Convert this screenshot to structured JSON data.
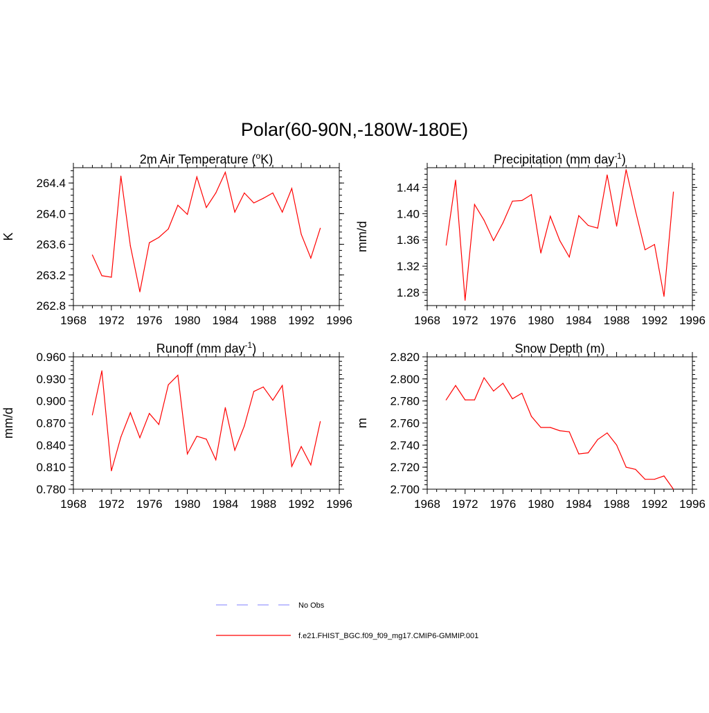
{
  "figure": {
    "main_title": "Polar(60-90N,-180W-180E)"
  },
  "legend": {
    "entries": [
      {
        "label": "No Obs",
        "color": "#9999ff",
        "style": "dashed"
      },
      {
        "label": "f.e21.FHIST_BGC.f09_f09_mg17.CMIP6-GMMIP.001",
        "color": "#ff0000",
        "style": "solid"
      }
    ]
  },
  "chart_data": [
    {
      "type": "line",
      "title": "2m Air Temperature (°K)",
      "title_parts": {
        "pre": "2m Air Temperature (",
        "sup": "o",
        "post": "K)"
      },
      "xlabel": "",
      "ylabel": "K",
      "xlim": [
        1968,
        1996
      ],
      "ylim": [
        262.8,
        264.6
      ],
      "xticks": [
        "1968",
        "1972",
        "1976",
        "1980",
        "1984",
        "1988",
        "1992",
        "1996"
      ],
      "yticks": [
        "262.8",
        "263.2",
        "263.6",
        "264.0",
        "264.4"
      ],
      "x": [
        1970,
        1971,
        1972,
        1973,
        1974,
        1975,
        1976,
        1977,
        1978,
        1979,
        1980,
        1981,
        1982,
        1983,
        1984,
        1985,
        1986,
        1987,
        1988,
        1989,
        1990,
        1991,
        1992,
        1993,
        1994
      ],
      "series": [
        {
          "name": "f.e21.FHIST_BGC.f09_f09_mg17.CMIP6-GMMIP.001",
          "color": "#ff0000",
          "values": [
            263.46,
            263.19,
            263.17,
            264.49,
            263.58,
            262.98,
            263.62,
            263.69,
            263.8,
            264.11,
            263.99,
            264.48,
            264.08,
            264.27,
            264.54,
            264.02,
            264.27,
            264.14,
            264.2,
            264.27,
            264.02,
            264.33,
            263.73,
            263.42,
            263.81
          ]
        }
      ]
    },
    {
      "type": "line",
      "title": "Precipitation (mm day-1)",
      "title_parts": {
        "pre": "Precipitation (mm day",
        "sup": "-1",
        "post": ")"
      },
      "xlabel": "",
      "ylabel": "mm/d",
      "xlim": [
        1968,
        1996
      ],
      "ylim": [
        1.26,
        1.47
      ],
      "xticks": [
        "1968",
        "1972",
        "1976",
        "1980",
        "1984",
        "1988",
        "1992",
        "1996"
      ],
      "yticks": [
        "1.28",
        "1.32",
        "1.36",
        "1.40",
        "1.44"
      ],
      "x": [
        1970,
        1971,
        1972,
        1973,
        1974,
        1975,
        1976,
        1977,
        1978,
        1979,
        1980,
        1981,
        1982,
        1983,
        1984,
        1985,
        1986,
        1987,
        1988,
        1989,
        1990,
        1991,
        1992,
        1993,
        1994
      ],
      "series": [
        {
          "name": "f.e21.FHIST_BGC.f09_f09_mg17.CMIP6-GMMIP.001",
          "color": "#ff0000",
          "values": [
            1.352,
            1.451,
            1.268,
            1.414,
            1.39,
            1.359,
            1.386,
            1.419,
            1.42,
            1.429,
            1.34,
            1.396,
            1.359,
            1.334,
            1.397,
            1.382,
            1.378,
            1.459,
            1.381,
            1.467,
            1.404,
            1.345,
            1.353,
            1.274,
            1.433
          ]
        }
      ]
    },
    {
      "type": "line",
      "title": "Runoff (mm day-1)",
      "title_parts": {
        "pre": "Runoff (mm day",
        "sup": "-1",
        "post": ")"
      },
      "xlabel": "",
      "ylabel": "mm/d",
      "xlim": [
        1968,
        1996
      ],
      "ylim": [
        0.78,
        0.96
      ],
      "xticks": [
        "1968",
        "1972",
        "1976",
        "1980",
        "1984",
        "1988",
        "1992",
        "1996"
      ],
      "yticks": [
        "0.780",
        "0.810",
        "0.840",
        "0.870",
        "0.900",
        "0.930",
        "0.960"
      ],
      "x": [
        1970,
        1971,
        1972,
        1973,
        1974,
        1975,
        1976,
        1977,
        1978,
        1979,
        1980,
        1981,
        1982,
        1983,
        1984,
        1985,
        1986,
        1987,
        1988,
        1989,
        1990,
        1991,
        1992,
        1993,
        1994
      ],
      "series": [
        {
          "name": "f.e21.FHIST_BGC.f09_f09_mg17.CMIP6-GMMIP.001",
          "color": "#ff0000",
          "values": [
            0.881,
            0.941,
            0.805,
            0.851,
            0.884,
            0.85,
            0.883,
            0.868,
            0.922,
            0.935,
            0.828,
            0.852,
            0.848,
            0.82,
            0.891,
            0.833,
            0.866,
            0.913,
            0.919,
            0.901,
            0.921,
            0.811,
            0.838,
            0.813,
            0.872
          ]
        }
      ]
    },
    {
      "type": "line",
      "title": "Snow Depth (m)",
      "title_parts": {
        "pre": "Snow Depth (m)",
        "sup": "",
        "post": ""
      },
      "xlabel": "",
      "ylabel": "m",
      "xlim": [
        1968,
        1996
      ],
      "ylim": [
        2.7,
        2.82
      ],
      "xticks": [
        "1968",
        "1972",
        "1976",
        "1980",
        "1984",
        "1988",
        "1992",
        "1996"
      ],
      "yticks": [
        "2.700",
        "2.720",
        "2.740",
        "2.760",
        "2.780",
        "2.800",
        "2.820"
      ],
      "x": [
        1970,
        1971,
        1972,
        1973,
        1974,
        1975,
        1976,
        1977,
        1978,
        1979,
        1980,
        1981,
        1982,
        1983,
        1984,
        1985,
        1986,
        1987,
        1988,
        1989,
        1990,
        1991,
        1992,
        1993,
        1994
      ],
      "series": [
        {
          "name": "f.e21.FHIST_BGC.f09_f09_mg17.CMIP6-GMMIP.001",
          "color": "#ff0000",
          "values": [
            2.781,
            2.794,
            2.781,
            2.781,
            2.801,
            2.789,
            2.796,
            2.782,
            2.787,
            2.766,
            2.756,
            2.756,
            2.753,
            2.752,
            2.732,
            2.733,
            2.745,
            2.751,
            2.74,
            2.72,
            2.718,
            2.709,
            2.709,
            2.712,
            2.7
          ]
        }
      ]
    }
  ]
}
